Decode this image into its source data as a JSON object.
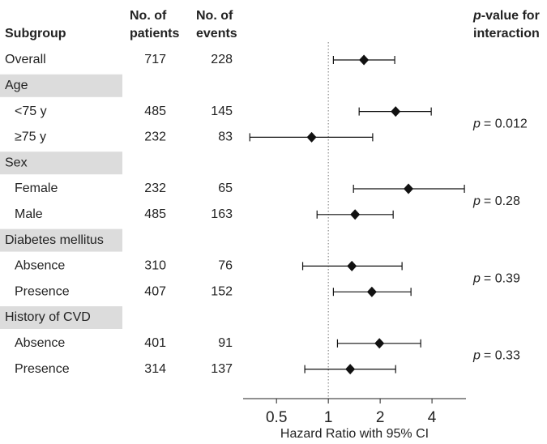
{
  "chart_data": {
    "type": "forest",
    "columns": {
      "subgroup": "Subgroup",
      "patients": [
        "No. of",
        "patients"
      ],
      "events": [
        "No. of",
        "events"
      ],
      "p_value": [
        "p",
        "-value for",
        "interaction"
      ]
    },
    "overall": {
      "label": "Overall",
      "patients": 717,
      "events": 228,
      "hr": 1.61,
      "lower": 1.07,
      "upper": 2.43
    },
    "groups": [
      {
        "name": "Age",
        "p_value": {
          "symbol": "p",
          "text": "= 0.012"
        },
        "rows": [
          {
            "label": "<75 y",
            "patients": 485,
            "events": 145,
            "hr": 2.46,
            "lower": 1.51,
            "upper": 3.96
          },
          {
            "label": "≥75 y",
            "patients": 232,
            "events": 83,
            "hr": 0.8,
            "lower": 0.35,
            "upper": 1.81
          }
        ]
      },
      {
        "name": "Sex",
        "p_value": {
          "symbol": "p",
          "text": "= 0.28"
        },
        "rows": [
          {
            "label": "Female",
            "patients": 232,
            "events": 65,
            "hr": 2.92,
            "lower": 1.4,
            "upper": 6.17
          },
          {
            "label": "Male",
            "patients": 485,
            "events": 163,
            "hr": 1.43,
            "lower": 0.86,
            "upper": 2.38
          }
        ]
      },
      {
        "name": "Diabetes mellitus",
        "p_value": {
          "symbol": "p",
          "text": "= 0.39"
        },
        "rows": [
          {
            "label": "Absence",
            "patients": 310,
            "events": 76,
            "hr": 1.37,
            "lower": 0.71,
            "upper": 2.68
          },
          {
            "label": "Presence",
            "patients": 407,
            "events": 152,
            "hr": 1.79,
            "lower": 1.07,
            "upper": 3.02
          }
        ]
      },
      {
        "name": "History of CVD",
        "p_value": {
          "symbol": "p",
          "text": "= 0.33"
        },
        "rows": [
          {
            "label": "Absence",
            "patients": 401,
            "events": 91,
            "hr": 1.98,
            "lower": 1.13,
            "upper": 3.44
          },
          {
            "label": "Presence",
            "patients": 314,
            "events": 137,
            "hr": 1.34,
            "lower": 0.73,
            "upper": 2.46
          }
        ]
      }
    ],
    "xscale": "log",
    "xlim": [
      0.32,
      6.3
    ],
    "xticks": [
      0.5,
      1,
      2,
      4
    ],
    "reference_line": 1,
    "xlabel": "Hazard Ratio with 95% CI",
    "band_color": "#dcdcdc",
    "mark_color": "#111"
  }
}
